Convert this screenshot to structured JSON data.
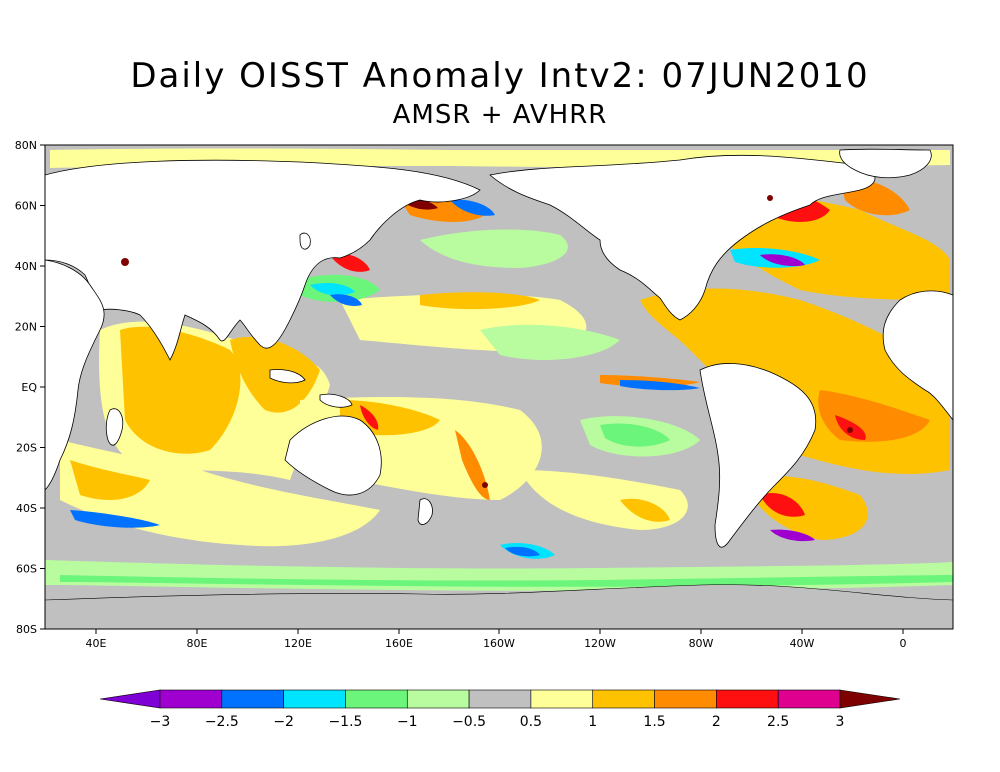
{
  "title": "Daily OISST Anomaly Intv2: 07JUN2010",
  "subtitle": "AMSR + AVHRR",
  "lat_labels": [
    "80N",
    "60N",
    "40N",
    "20N",
    "EQ",
    "20S",
    "40S",
    "60S",
    "80S"
  ],
  "lon_labels": [
    "40E",
    "80E",
    "120E",
    "160E",
    "160W",
    "120W",
    "80W",
    "40W",
    "0"
  ],
  "colorbar": {
    "tick_labels": [
      "−3",
      "−2.5",
      "−2",
      "−1.5",
      "−1",
      "−0.5",
      "0.5",
      "1",
      "1.5",
      "2",
      "2.5",
      "3"
    ],
    "colors": [
      "#7f00d4",
      "#9f00cf",
      "#0072ff",
      "#00e4ff",
      "#6bf57a",
      "#b9fca0",
      "#c0c0c0",
      "#ffff99",
      "#ffc200",
      "#ff8c00",
      "#ff1010",
      "#e0008f",
      "#7f0000"
    ]
  },
  "colors": {
    "ocean_neutral": "#c0c0c0",
    "land": "#ffffff",
    "coast": "#000000"
  }
}
